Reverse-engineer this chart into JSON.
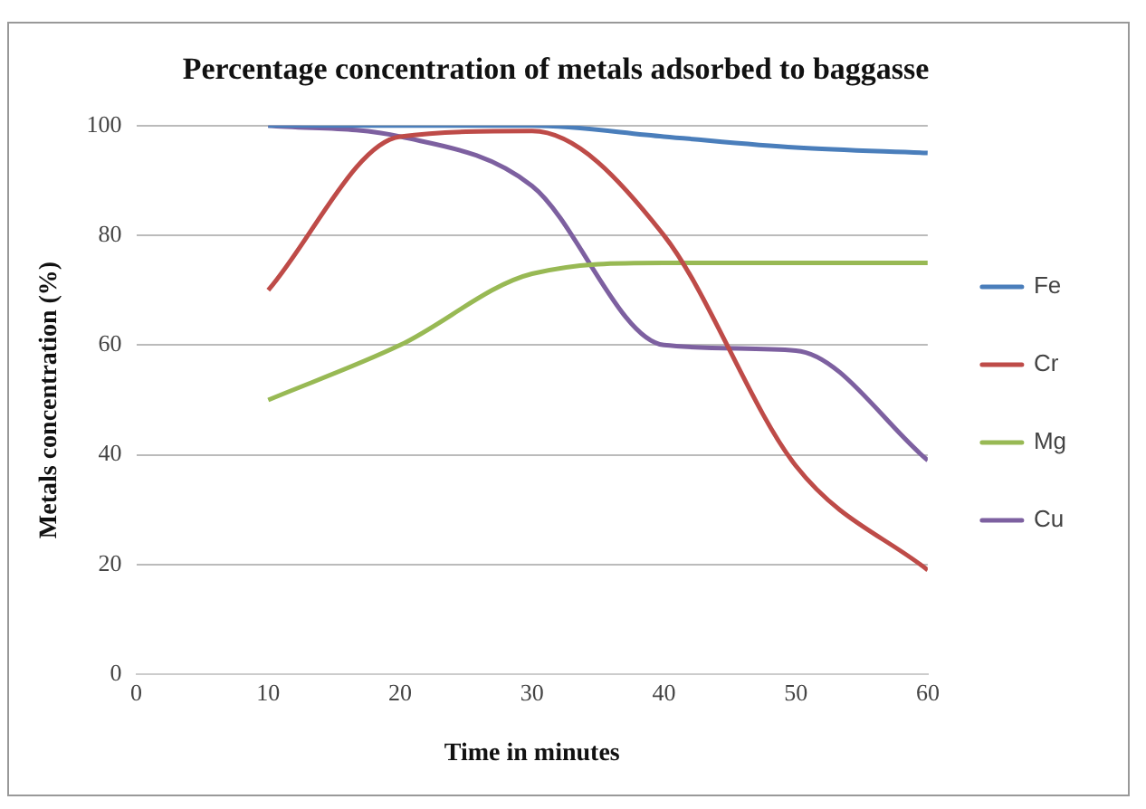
{
  "chart_data": {
    "type": "line",
    "title": "Percentage concentration of metals adsorbed to baggasse",
    "xlabel": "Time in minutes",
    "ylabel": "Metals concentration (%)",
    "x": [
      10,
      20,
      30,
      40,
      50,
      60
    ],
    "series": [
      {
        "name": "Fe",
        "color": "#4a7ebb",
        "values": [
          100,
          100,
          100,
          98,
          96,
          95
        ]
      },
      {
        "name": "Cr",
        "color": "#be4b48",
        "values": [
          70,
          98,
          99,
          80,
          38,
          19
        ]
      },
      {
        "name": "Mg",
        "color": "#98b954",
        "values": [
          50,
          60,
          73,
          75,
          75,
          75
        ]
      },
      {
        "name": "Cu",
        "color": "#7d60a0",
        "values": [
          100,
          98,
          89,
          60,
          59,
          39
        ]
      }
    ],
    "xlim": [
      0,
      60
    ],
    "xticks": [
      0,
      10,
      20,
      30,
      40,
      50,
      60
    ],
    "ylim": [
      0,
      100
    ],
    "yticks": [
      0,
      20,
      40,
      60,
      80,
      100
    ],
    "grid": "y",
    "legend": "right",
    "marker": "none",
    "line_style": "solid"
  }
}
